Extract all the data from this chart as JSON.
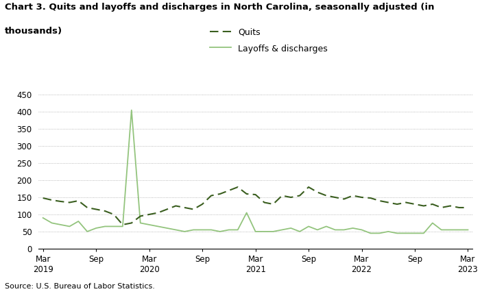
{
  "title_line1": "Chart 3. Quits and layoffs and discharges in North Carolina, seasonally adjusted (in",
  "title_line2": "thousands)",
  "source": "Source: U.S. Bureau of Labor Statistics.",
  "quits_label": "Quits",
  "layoffs_label": "Layoffs & discharges",
  "quits_color": "#3a5e1f",
  "layoffs_color": "#93c47d",
  "ylim": [
    0,
    450
  ],
  "yticks": [
    0,
    50,
    100,
    150,
    200,
    250,
    300,
    350,
    400,
    450
  ],
  "xtick_labels": [
    "Mar\n2019",
    "Sep",
    "Mar\n2020",
    "Sep",
    "Mar\n2021",
    "Sep",
    "Mar\n2022",
    "Sep",
    "Mar\n2023"
  ],
  "xtick_positions": [
    0,
    6,
    12,
    18,
    24,
    30,
    36,
    42,
    48
  ],
  "quits": [
    148,
    142,
    138,
    135,
    140,
    120,
    115,
    110,
    100,
    70,
    75,
    95,
    100,
    105,
    115,
    125,
    120,
    115,
    130,
    155,
    160,
    170,
    180,
    160,
    158,
    135,
    130,
    155,
    150,
    155,
    180,
    165,
    155,
    150,
    145,
    155,
    150,
    148,
    140,
    135,
    130,
    135,
    130,
    125,
    130,
    120,
    125,
    120,
    120
  ],
  "layoffs": [
    90,
    75,
    70,
    65,
    80,
    50,
    60,
    65,
    65,
    65,
    405,
    75,
    70,
    65,
    60,
    55,
    50,
    55,
    55,
    55,
    50,
    55,
    55,
    105,
    50,
    50,
    50,
    55,
    60,
    50,
    65,
    55,
    65,
    55,
    55,
    60,
    55,
    45,
    45,
    50,
    45,
    45,
    45,
    45,
    75,
    55,
    55,
    55,
    55
  ]
}
